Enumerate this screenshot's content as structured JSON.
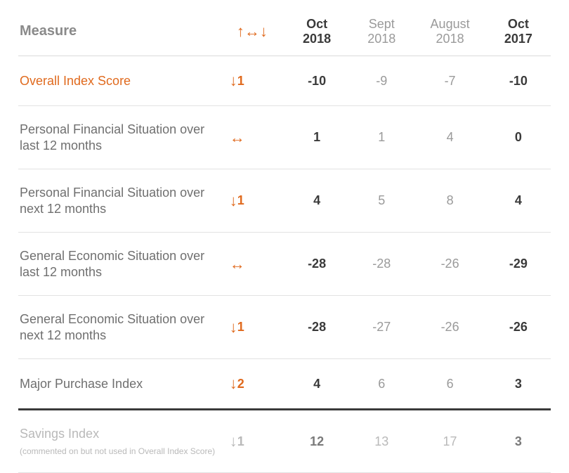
{
  "colors": {
    "accent": "#e06a1e",
    "text_primary": "#3a3a3a",
    "text_secondary": "#6f6f6f",
    "text_muted": "#9a9a9a",
    "text_faded": "#b9b9b9",
    "border_light": "#e2e2e2",
    "border_heavy": "#3a3a3a",
    "background": "#ffffff"
  },
  "typography": {
    "family": "Arial, Helvetica, sans-serif",
    "header_size_pt": 18,
    "body_size_pt": 18,
    "measure_header_size_pt": 20,
    "trend_header_size_pt": 22,
    "subnote_size_pt": 12
  },
  "header": {
    "measure_label": "Measure",
    "trend_glyph": "↑↔↓",
    "columns": [
      {
        "line1": "Oct",
        "line2": "2018",
        "emphasis": "current"
      },
      {
        "line1": "Sept",
        "line2": "2018",
        "emphasis": "dim"
      },
      {
        "line1": "August",
        "line2": "2018",
        "emphasis": "dim"
      },
      {
        "line1": "Oct",
        "line2": "2017",
        "emphasis": "current"
      }
    ]
  },
  "rows": [
    {
      "label": "Overall Index Score",
      "highlight": true,
      "trend": {
        "arrow": "↓",
        "magnitude": "1"
      },
      "values": [
        "-10",
        "-9",
        "-7",
        "-10"
      ]
    },
    {
      "label": "Personal Financial Situation over last 12 months",
      "trend": {
        "arrow": "↔",
        "magnitude": ""
      },
      "values": [
        "1",
        "1",
        "4",
        "0"
      ]
    },
    {
      "label": "Personal Financial Situation over next 12 months",
      "trend": {
        "arrow": "↓",
        "magnitude": "1"
      },
      "values": [
        "4",
        "5",
        "8",
        "4"
      ]
    },
    {
      "label": "General Economic Situation over last 12 months",
      "trend": {
        "arrow": "↔",
        "magnitude": ""
      },
      "values": [
        "-28",
        "-28",
        "-26",
        "-29"
      ]
    },
    {
      "label": "General Economic Situation over next 12 months",
      "trend": {
        "arrow": "↓",
        "magnitude": "1"
      },
      "values": [
        "-28",
        "-27",
        "-26",
        "-26"
      ]
    },
    {
      "label": "Major Purchase Index",
      "thick_border": true,
      "trend": {
        "arrow": "↓",
        "magnitude": "2"
      },
      "values": [
        "4",
        "6",
        "6",
        "3"
      ]
    },
    {
      "label": "Savings Index",
      "subnote": "(commented on but not used in Overall Index Score)",
      "savings": true,
      "trend": {
        "arrow": "↓",
        "magnitude": "1"
      },
      "values": [
        "12",
        "13",
        "17",
        "3"
      ]
    }
  ],
  "value_column_emphasis": [
    "current",
    "dim",
    "dim",
    "current"
  ]
}
